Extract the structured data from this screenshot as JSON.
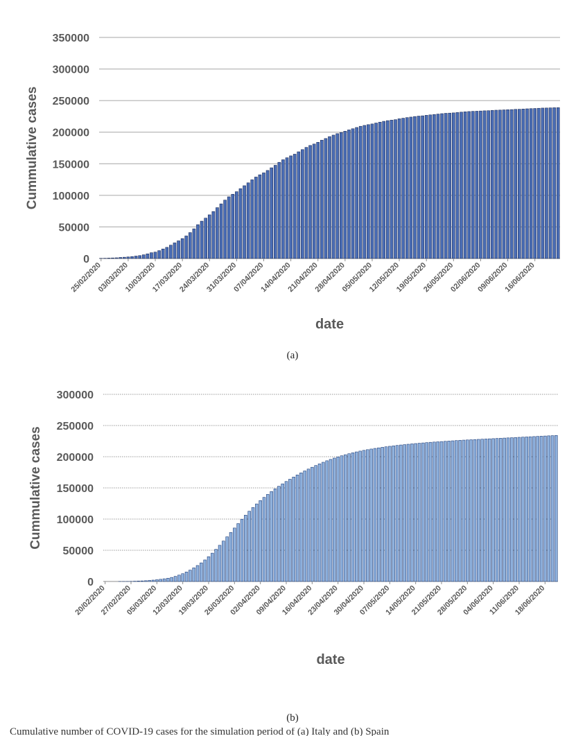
{
  "figures": [
    {
      "caption": "(a)"
    },
    {
      "caption": "(b)"
    }
  ],
  "footer_caption_fragment": "Cumulative number of COVID-19 cases for the simulation period of (a) Italy and (b) Spain",
  "chart_data": [
    {
      "type": "bar",
      "title": "",
      "xlabel": "date",
      "ylabel": "Cummulative cases",
      "ylim": [
        0,
        350000
      ],
      "yticks": [
        0,
        50000,
        100000,
        150000,
        200000,
        250000,
        300000,
        350000
      ],
      "grid": "horizontal solid",
      "legend": "none",
      "bar_color": "#4a6db5",
      "bar_edge_color": "#1f2f5a",
      "categories": [
        "25/02/2020",
        "26/02/2020",
        "27/02/2020",
        "28/02/2020",
        "29/02/2020",
        "01/03/2020",
        "02/03/2020",
        "03/03/2020",
        "04/03/2020",
        "05/03/2020",
        "06/03/2020",
        "07/03/2020",
        "08/03/2020",
        "09/03/2020",
        "10/03/2020",
        "11/03/2020",
        "12/03/2020",
        "13/03/2020",
        "14/03/2020",
        "15/03/2020",
        "16/03/2020",
        "17/03/2020",
        "18/03/2020",
        "19/03/2020",
        "20/03/2020",
        "21/03/2020",
        "22/03/2020",
        "23/03/2020",
        "24/03/2020",
        "25/03/2020",
        "26/03/2020",
        "27/03/2020",
        "28/03/2020",
        "29/03/2020",
        "30/03/2020",
        "31/03/2020",
        "01/04/2020",
        "02/04/2020",
        "03/04/2020",
        "04/04/2020",
        "05/04/2020",
        "06/04/2020",
        "07/04/2020",
        "08/04/2020",
        "09/04/2020",
        "10/04/2020",
        "11/04/2020",
        "12/04/2020",
        "13/04/2020",
        "14/04/2020",
        "15/04/2020",
        "16/04/2020",
        "17/04/2020",
        "18/04/2020",
        "19/04/2020",
        "20/04/2020",
        "21/04/2020",
        "22/04/2020",
        "23/04/2020",
        "24/04/2020",
        "25/04/2020",
        "26/04/2020",
        "27/04/2020",
        "28/04/2020",
        "29/04/2020",
        "30/04/2020",
        "01/05/2020",
        "02/05/2020",
        "03/05/2020",
        "04/05/2020",
        "05/05/2020",
        "06/05/2020",
        "07/05/2020",
        "08/05/2020",
        "09/05/2020",
        "10/05/2020",
        "11/05/2020",
        "12/05/2020",
        "13/05/2020",
        "14/05/2020",
        "15/05/2020",
        "16/05/2020",
        "17/05/2020",
        "18/05/2020",
        "19/05/2020",
        "20/05/2020",
        "21/05/2020",
        "22/05/2020",
        "23/05/2020",
        "24/05/2020",
        "25/05/2020",
        "26/05/2020",
        "27/05/2020",
        "28/05/2020",
        "29/05/2020",
        "30/05/2020",
        "31/05/2020",
        "01/06/2020",
        "02/06/2020",
        "03/06/2020",
        "04/06/2020",
        "05/06/2020",
        "06/06/2020",
        "07/06/2020",
        "08/06/2020",
        "09/06/2020",
        "10/06/2020",
        "11/06/2020",
        "12/06/2020",
        "13/06/2020",
        "14/06/2020",
        "15/06/2020",
        "16/06/2020",
        "17/06/2020",
        "18/06/2020",
        "19/06/2020",
        "20/06/2020",
        "21/06/2020",
        "22/06/2020"
      ],
      "tick_labels": [
        "25/02/2020",
        "03/03/2020",
        "10/03/2020",
        "17/03/2020",
        "24/03/2020",
        "31/03/2020",
        "07/04/2020",
        "14/04/2020",
        "21/04/2020",
        "28/04/2020",
        "05/05/2020",
        "12/05/2020",
        "19/05/2020",
        "26/05/2020",
        "02/06/2020",
        "09/06/2020",
        "16/06/2020"
      ],
      "values": [
        322,
        400,
        650,
        888,
        1128,
        1694,
        2036,
        2502,
        3089,
        3858,
        4636,
        5883,
        7375,
        9172,
        10149,
        12462,
        15113,
        17660,
        21157,
        24747,
        27980,
        31506,
        35713,
        41035,
        47021,
        53578,
        59138,
        63927,
        69176,
        74386,
        80539,
        86498,
        92472,
        97689,
        101739,
        105792,
        110574,
        115242,
        119827,
        124632,
        128948,
        132547,
        135586,
        139422,
        143626,
        147577,
        152271,
        156363,
        159516,
        162488,
        165155,
        168941,
        172434,
        175925,
        178972,
        181228,
        183957,
        187327,
        189973,
        192994,
        195351,
        197675,
        199414,
        201505,
        203591,
        205463,
        207428,
        209328,
        210717,
        211938,
        213013,
        214457,
        215858,
        217185,
        218268,
        219070,
        219814,
        221216,
        222104,
        223096,
        223885,
        224760,
        225435,
        225886,
        226699,
        227364,
        228006,
        228658,
        229327,
        229858,
        230158,
        230555,
        231139,
        231732,
        232248,
        232664,
        232997,
        233197,
        233515,
        233836,
        234013,
        234531,
        234801,
        234998,
        235278,
        235561,
        235763,
        236142,
        236305,
        236651,
        236989,
        237290,
        237500,
        237828,
        238159,
        238275,
        238499,
        238720,
        238833
      ]
    },
    {
      "type": "bar",
      "title": "",
      "xlabel": "date",
      "ylabel": "Cummulative cases",
      "ylim": [
        0,
        300000
      ],
      "yticks": [
        0,
        50000,
        100000,
        150000,
        200000,
        250000,
        300000
      ],
      "grid": "horizontal dotted",
      "legend": "none",
      "bar_color": "#8fb1dd",
      "bar_edge_color": "#1f3f7a",
      "categories": [
        "20/02/2020",
        "21/02/2020",
        "22/02/2020",
        "23/02/2020",
        "24/02/2020",
        "25/02/2020",
        "26/02/2020",
        "27/02/2020",
        "28/02/2020",
        "29/02/2020",
        "01/03/2020",
        "02/03/2020",
        "03/03/2020",
        "04/03/2020",
        "05/03/2020",
        "06/03/2020",
        "07/03/2020",
        "08/03/2020",
        "09/03/2020",
        "10/03/2020",
        "11/03/2020",
        "12/03/2020",
        "13/03/2020",
        "14/03/2020",
        "15/03/2020",
        "16/03/2020",
        "17/03/2020",
        "18/03/2020",
        "19/03/2020",
        "20/03/2020",
        "21/03/2020",
        "22/03/2020",
        "23/03/2020",
        "24/03/2020",
        "25/03/2020",
        "26/03/2020",
        "27/03/2020",
        "28/03/2020",
        "29/03/2020",
        "30/03/2020",
        "31/03/2020",
        "01/04/2020",
        "02/04/2020",
        "03/04/2020",
        "04/04/2020",
        "05/04/2020",
        "06/04/2020",
        "07/04/2020",
        "08/04/2020",
        "09/04/2020",
        "10/04/2020",
        "11/04/2020",
        "12/04/2020",
        "13/04/2020",
        "14/04/2020",
        "15/04/2020",
        "16/04/2020",
        "17/04/2020",
        "18/04/2020",
        "19/04/2020",
        "20/04/2020",
        "21/04/2020",
        "22/04/2020",
        "23/04/2020",
        "24/04/2020",
        "25/04/2020",
        "26/04/2020",
        "27/04/2020",
        "28/04/2020",
        "29/04/2020",
        "30/04/2020",
        "01/05/2020",
        "02/05/2020",
        "03/05/2020",
        "04/05/2020",
        "05/05/2020",
        "06/05/2020",
        "07/05/2020",
        "08/05/2020",
        "09/05/2020",
        "10/05/2020",
        "11/05/2020",
        "12/05/2020",
        "13/05/2020",
        "14/05/2020",
        "15/05/2020",
        "16/05/2020",
        "17/05/2020",
        "18/05/2020",
        "19/05/2020",
        "20/05/2020",
        "21/05/2020",
        "22/05/2020",
        "23/05/2020",
        "24/05/2020",
        "25/05/2020",
        "26/05/2020",
        "27/05/2020",
        "28/05/2020",
        "29/05/2020",
        "30/05/2020",
        "31/05/2020",
        "01/06/2020",
        "02/06/2020",
        "03/06/2020",
        "04/06/2020",
        "05/06/2020",
        "06/06/2020",
        "07/06/2020",
        "08/06/2020",
        "09/06/2020",
        "10/06/2020",
        "11/06/2020",
        "12/06/2020",
        "13/06/2020",
        "14/06/2020",
        "15/06/2020",
        "16/06/2020",
        "17/06/2020",
        "18/06/2020",
        "19/06/2020",
        "20/06/2020",
        "21/06/2020"
      ],
      "tick_labels": [
        "20/02/2020",
        "27/02/2020",
        "05/03/2020",
        "12/03/2020",
        "19/03/2020",
        "26/03/2020",
        "02/04/2020",
        "09/04/2020",
        "16/04/2020",
        "23/04/2020",
        "30/04/2020",
        "07/05/2020",
        "14/05/2020",
        "21/05/2020",
        "28/05/2020",
        "04/06/2020",
        "11/06/2020",
        "18/06/2020"
      ],
      "values": [
        0,
        0,
        0,
        0,
        3,
        15,
        60,
        220,
        430,
        660,
        920,
        1250,
        1690,
        2200,
        2800,
        3500,
        4300,
        5200,
        6500,
        8200,
        10200,
        12500,
        15200,
        18200,
        21800,
        25600,
        29800,
        34500,
        39700,
        45400,
        51500,
        58000,
        64800,
        71600,
        78500,
        85700,
        92800,
        99700,
        106300,
        112600,
        118600,
        124300,
        129700,
        134800,
        139600,
        144200,
        148500,
        152600,
        156500,
        160300,
        163900,
        167400,
        170800,
        174100,
        177200,
        180200,
        183100,
        185900,
        188600,
        191100,
        193500,
        195700,
        197800,
        199700,
        201500,
        203200,
        204800,
        206300,
        207700,
        209000,
        210200,
        211300,
        212300,
        213300,
        214200,
        215100,
        215900,
        216700,
        217400,
        218100,
        218800,
        219400,
        220000,
        220600,
        221100,
        221600,
        222100,
        222600,
        223100,
        223500,
        223900,
        224300,
        224700,
        225100,
        225500,
        225900,
        226300,
        226600,
        226900,
        227200,
        227500,
        227800,
        228100,
        228400,
        228700,
        229000,
        229300,
        229600,
        229900,
        230200,
        230500,
        230800,
        231100,
        231400,
        231700,
        232000,
        232300,
        232600,
        232900,
        233200,
        233500,
        233800,
        234100
      ]
    }
  ]
}
